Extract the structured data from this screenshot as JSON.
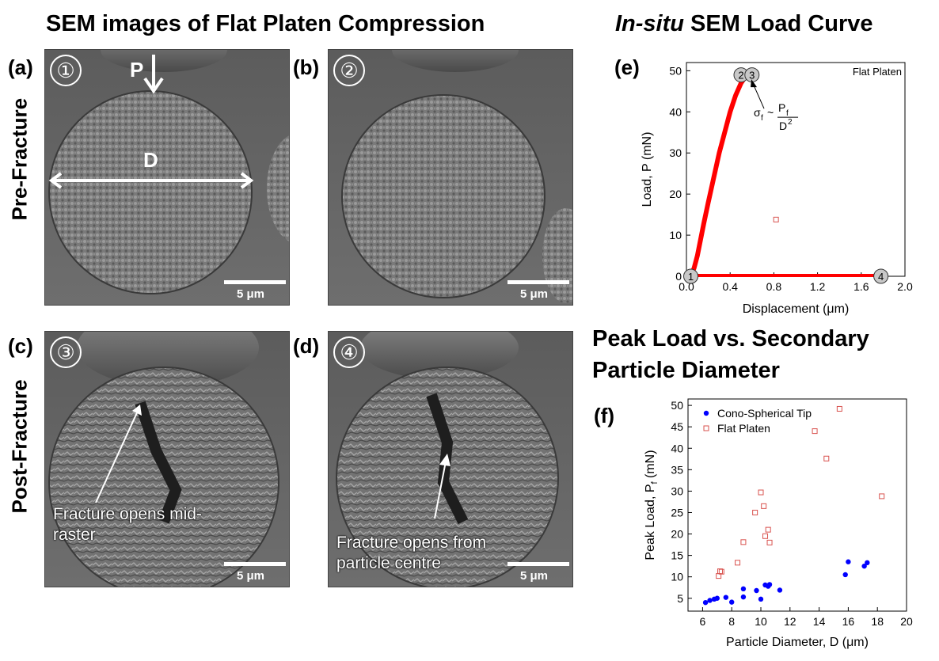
{
  "titles": {
    "left": "SEM images of Flat Platen Compression",
    "right_top_italic": "In-situ",
    "right_top_rest": " SEM Load Curve",
    "right_mid_line1": "Peak Load vs. Secondary",
    "right_mid_line2": "Particle Diameter"
  },
  "row_labels": {
    "pre": "Pre-Fracture",
    "post": "Post-Fracture"
  },
  "panels": {
    "a": {
      "label": "(a)",
      "step": "①",
      "scale": "5 μm",
      "arrow_label": "P",
      "dia_label": "D"
    },
    "b": {
      "label": "(b)",
      "step": "②",
      "scale": "5 μm"
    },
    "c": {
      "label": "(c)",
      "step": "③",
      "scale": "5 μm",
      "note_line1": "Fracture opens mid-",
      "note_line2": "raster"
    },
    "d": {
      "label": "(d)",
      "step": "④",
      "scale": "5 μm",
      "note_line1": "Fracture opens from",
      "note_line2": "particle centre"
    },
    "e": {
      "label": "(e)"
    },
    "f": {
      "label": "(f)"
    }
  },
  "colors": {
    "red": "#ff0000",
    "blue": "#0000ff",
    "hollow_red": "#d9534f",
    "sem_bg": "#6b6b6b"
  },
  "chart_data": [
    {
      "type": "scatter",
      "title": "",
      "legend_text": "Flat Platen",
      "xlabel": "Displacement (μm)",
      "ylabel": "Load, P (mN)",
      "xlim": [
        0,
        2.0
      ],
      "ylim": [
        0,
        52
      ],
      "xticks": [
        "0.0",
        "0.4",
        "0.8",
        "1.2",
        "1.6",
        "2.0"
      ],
      "yticks": [
        "0",
        "10",
        "20",
        "30",
        "40",
        "50"
      ],
      "loading_curve": {
        "x": [
          0.04,
          0.07,
          0.1,
          0.13,
          0.16,
          0.2,
          0.25,
          0.3,
          0.35,
          0.4,
          0.45,
          0.5,
          0.55,
          0.57
        ],
        "y": [
          0,
          2,
          5,
          9,
          13,
          18,
          24,
          30,
          35,
          40,
          44,
          47,
          49,
          49
        ]
      },
      "unloading_line": {
        "x": [
          0.04,
          1.74
        ],
        "y": [
          0,
          0
        ]
      },
      "outlier": {
        "x": 0.82,
        "y": 13.8
      },
      "markers": [
        {
          "label": "1",
          "x": 0.04,
          "y": 0
        },
        {
          "label": "2",
          "x": 0.5,
          "y": 49
        },
        {
          "label": "3",
          "x": 0.6,
          "y": 49
        },
        {
          "label": "4",
          "x": 1.78,
          "y": 0
        }
      ],
      "annotation": {
        "sigma": "σ",
        "sub_f": "f",
        "approx": "~",
        "P": "P",
        "sub_f2": "f",
        "D2": "D",
        "sup2": "2",
        "x": 0.58,
        "y": 48.5
      }
    },
    {
      "type": "scatter",
      "title": "",
      "xlabel": "Particle Diameter, D (μm)",
      "ylabel_main": "Peak Load, P",
      "ylabel_sub": "f",
      "ylabel_end": " (mN)",
      "xlim": [
        5,
        20
      ],
      "ylim": [
        2,
        51.5
      ],
      "xticks": [
        "6",
        "8",
        "10",
        "12",
        "14",
        "16",
        "18",
        "20"
      ],
      "yticks": [
        "5",
        "10",
        "15",
        "20",
        "25",
        "30",
        "35",
        "40",
        "45",
        "50"
      ],
      "series": [
        {
          "name": "Cono-Spherical Tip",
          "marker": "filled-circle",
          "x": [
            6.2,
            6.5,
            6.8,
            7.0,
            7.6,
            8.0,
            8.8,
            8.8,
            9.7,
            10.0,
            10.3,
            10.5,
            10.6,
            11.3,
            15.8,
            16.0,
            17.1,
            17.3
          ],
          "y": [
            4.0,
            4.5,
            4.8,
            5.0,
            5.2,
            4.1,
            5.3,
            7.2,
            6.8,
            4.8,
            8.1,
            7.8,
            8.2,
            6.9,
            10.5,
            13.5,
            12.5,
            13.3
          ]
        },
        {
          "name": "Flat Platen",
          "marker": "hollow-square",
          "x": [
            7.1,
            7.2,
            7.3,
            8.4,
            8.8,
            9.6,
            10.0,
            10.2,
            10.3,
            10.5,
            10.6,
            13.7,
            14.5,
            15.4,
            18.3
          ],
          "y": [
            10.2,
            11.3,
            11.2,
            13.3,
            18.1,
            25.0,
            29.7,
            26.5,
            19.5,
            21.0,
            18.0,
            44.0,
            37.6,
            49.2,
            28.8
          ]
        }
      ]
    }
  ]
}
